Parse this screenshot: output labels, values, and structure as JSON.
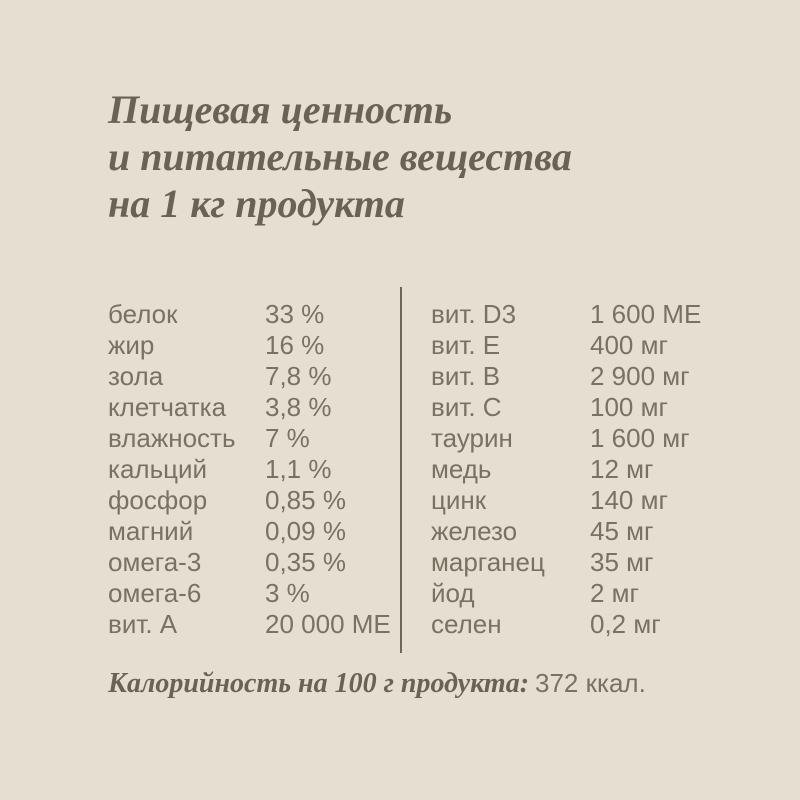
{
  "colors": {
    "background": "#e6dfd1",
    "title_text": "#6a6254",
    "body_text": "#7a7163",
    "divider": "#6e6659"
  },
  "title": {
    "line1": "Пищевая ценность",
    "line2": "и питательные вещества",
    "line3": "на 1 кг продукта"
  },
  "table": {
    "left": [
      {
        "label": "белок",
        "value": "33 %"
      },
      {
        "label": "жир",
        "value": "16 %"
      },
      {
        "label": "зола",
        "value": "7,8 %"
      },
      {
        "label": "клетчатка",
        "value": "3,8 %"
      },
      {
        "label": "влажность",
        "value": "7 %"
      },
      {
        "label": "кальций",
        "value": "1,1 %"
      },
      {
        "label": "фосфор",
        "value": "0,85 %"
      },
      {
        "label": "магний",
        "value": "0,09 %"
      },
      {
        "label": "омега-3",
        "value": "0,35 %"
      },
      {
        "label": "омега-6",
        "value": "3 %"
      },
      {
        "label": "вит. A",
        "value": "20 000 МЕ"
      }
    ],
    "right": [
      {
        "label": "вит. D3",
        "value": "1 600 МЕ"
      },
      {
        "label": "вит. E",
        "value": "400 мг"
      },
      {
        "label": "вит. B",
        "value": "2 900 мг"
      },
      {
        "label": "вит. C",
        "value": "100 мг"
      },
      {
        "label": "таурин",
        "value": "1 600 мг"
      },
      {
        "label": "медь",
        "value": "12 мг"
      },
      {
        "label": "цинк",
        "value": "140 мг"
      },
      {
        "label": "железо",
        "value": "45 мг"
      },
      {
        "label": "марганец",
        "value": "35 мг"
      },
      {
        "label": "йод",
        "value": "2 мг"
      },
      {
        "label": "селен",
        "value": "0,2 мг"
      }
    ]
  },
  "footer": {
    "label": "Калорийность на 100 г продукта:",
    "value": "372 ккал."
  }
}
